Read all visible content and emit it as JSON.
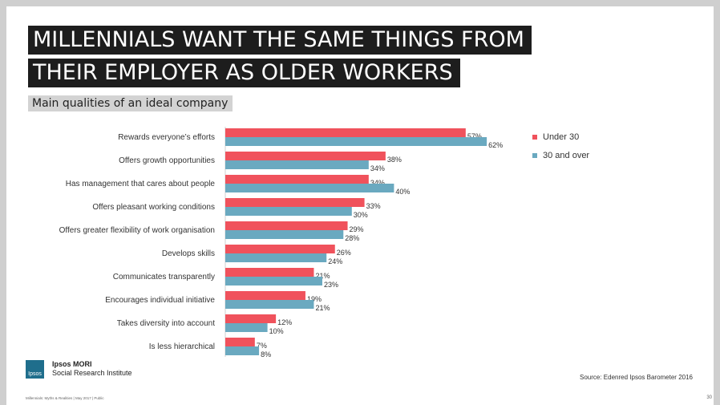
{
  "slide": {
    "title_lines": [
      "MILLENNIALS WANT THE SAME THINGS FROM",
      "THEIR EMPLOYER AS OLDER WORKERS"
    ],
    "subtitle": "Main qualities of an ideal company",
    "logo": {
      "box_text": "Ipsos",
      "name": "Ipsos MORI",
      "sub": "Social Research Institute",
      "color": "#1f6e8c"
    },
    "source": "Source: Edenred Ipsos Barometer 2016",
    "footer": "Millennials: Myths & Realities | May 2017 | Public",
    "page_number": "30"
  },
  "chart_data": {
    "type": "bar",
    "orientation": "horizontal",
    "categories": [
      "Rewards everyone’s efforts",
      "Offers growth opportunities",
      "Has management that cares about people",
      "Offers pleasant working conditions",
      "Offers greater flexibility of work organisation",
      "Develops skills",
      "Communicates transparently",
      "Encourages individual initiative",
      "Takes diversity into account",
      "Is less hierarchical"
    ],
    "series": [
      {
        "name": "Under 30",
        "color": "#f0525c",
        "values": [
          57,
          38,
          34,
          33,
          29,
          26,
          21,
          19,
          12,
          7
        ]
      },
      {
        "name": "30 and over",
        "color": "#6aa9c0",
        "values": [
          62,
          34,
          40,
          30,
          28,
          24,
          23,
          21,
          10,
          8
        ]
      }
    ],
    "value_suffix": "%",
    "xlim": [
      0,
      100
    ],
    "legend_position": "right",
    "grid": false
  }
}
